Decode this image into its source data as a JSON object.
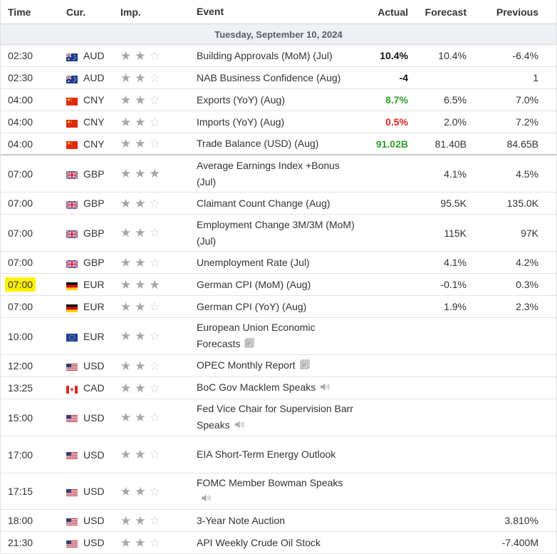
{
  "header": {
    "time": "Time",
    "cur": "Cur.",
    "imp": "Imp.",
    "event": "Event",
    "actual": "Actual",
    "forecast": "Forecast",
    "previous": "Previous"
  },
  "date_label": "Tuesday, September 10, 2024",
  "colors": {
    "positive": "#2e9e2e",
    "negative": "#e0231f",
    "highlight": "#fff200",
    "star_on": "#a6a6a6",
    "star_off": "#cfcfcf"
  },
  "rows": [
    {
      "time": "02:30",
      "cur": "AUD",
      "flag": "aud-flag-icon",
      "stars": 2,
      "event": "Building Approvals (MoM) (Jul)",
      "actual": "10.4%",
      "actual_tone": "neu",
      "forecast": "10.4%",
      "previous": "-6.4%"
    },
    {
      "time": "02:30",
      "cur": "AUD",
      "flag": "aud-flag-icon",
      "stars": 2,
      "event": "NAB Business Confidence (Aug)",
      "actual": "-4",
      "actual_tone": "neu",
      "forecast": "",
      "previous": "1"
    },
    {
      "time": "04:00",
      "cur": "CNY",
      "flag": "cny-flag-icon",
      "stars": 2,
      "event": "Exports (YoY) (Aug)",
      "actual": "8.7%",
      "actual_tone": "pos",
      "forecast": "6.5%",
      "previous": "7.0%"
    },
    {
      "time": "04:00",
      "cur": "CNY",
      "flag": "cny-flag-icon",
      "stars": 2,
      "event": "Imports (YoY) (Aug)",
      "actual": "0.5%",
      "actual_tone": "neg",
      "forecast": "2.0%",
      "previous": "7.2%"
    },
    {
      "time": "04:00",
      "cur": "CNY",
      "flag": "cny-flag-icon",
      "stars": 2,
      "event": "Trade Balance (USD) (Aug)",
      "actual": "91.02B",
      "actual_tone": "pos",
      "forecast": "81.40B",
      "previous": "84.65B",
      "separator": true
    },
    {
      "time": "07:00",
      "cur": "GBP",
      "flag": "gbp-flag-icon",
      "stars": 3,
      "event": "Average Earnings Index +Bonus (Jul)",
      "actual": "",
      "forecast": "4.1%",
      "previous": "4.5%",
      "h": 52
    },
    {
      "time": "07:00",
      "cur": "GBP",
      "flag": "gbp-flag-icon",
      "stars": 2,
      "event": "Claimant Count Change (Aug)",
      "actual": "",
      "forecast": "95.5K",
      "previous": "135.0K"
    },
    {
      "time": "07:00",
      "cur": "GBP",
      "flag": "gbp-flag-icon",
      "stars": 2,
      "event": "Employment Change 3M/3M (MoM) (Jul)",
      "actual": "",
      "forecast": "115K",
      "previous": "97K",
      "h": 52
    },
    {
      "time": "07:00",
      "cur": "GBP",
      "flag": "gbp-flag-icon",
      "stars": 2,
      "event": "Unemployment Rate (Jul)",
      "actual": "",
      "forecast": "4.1%",
      "previous": "4.2%"
    },
    {
      "time": "07:00",
      "cur": "EUR",
      "flag": "de-flag-icon",
      "stars": 3,
      "event": "German CPI (MoM) (Aug)",
      "actual": "",
      "forecast": "-0.1%",
      "previous": "0.3%",
      "highlight": true
    },
    {
      "time": "07:00",
      "cur": "EUR",
      "flag": "de-flag-icon",
      "stars": 2,
      "event": "German CPI (YoY) (Aug)",
      "actual": "",
      "forecast": "1.9%",
      "previous": "2.3%"
    },
    {
      "time": "10:00",
      "cur": "EUR",
      "flag": "eu-flag-icon",
      "stars": 2,
      "event": "European Union Economic Forecasts",
      "icon": "report-icon",
      "actual": "",
      "forecast": "",
      "previous": "",
      "h": 52
    },
    {
      "time": "12:00",
      "cur": "USD",
      "flag": "usd-flag-icon",
      "stars": 2,
      "event": "OPEC Monthly Report",
      "icon": "report-icon",
      "actual": "",
      "forecast": "",
      "previous": ""
    },
    {
      "time": "13:25",
      "cur": "CAD",
      "flag": "cad-flag-icon",
      "stars": 2,
      "event": "BoC Gov Macklem Speaks",
      "icon": "speaker-icon",
      "actual": "",
      "forecast": "",
      "previous": ""
    },
    {
      "time": "15:00",
      "cur": "USD",
      "flag": "usd-flag-icon",
      "stars": 2,
      "event": "Fed Vice Chair for Supervision Barr Speaks",
      "icon": "speaker-icon",
      "actual": "",
      "forecast": "",
      "previous": "",
      "h": 52
    },
    {
      "time": "17:00",
      "cur": "USD",
      "flag": "usd-flag-icon",
      "stars": 2,
      "event": "EIA Short-Term Energy Outlook",
      "actual": "",
      "forecast": "",
      "previous": "",
      "h": 52
    },
    {
      "time": "17:15",
      "cur": "USD",
      "flag": "usd-flag-icon",
      "stars": 2,
      "event": "FOMC Member Bowman Speaks",
      "icon": "speaker-icon",
      "icon_newline": true,
      "actual": "",
      "forecast": "",
      "previous": "",
      "h": 51
    },
    {
      "time": "18:00",
      "cur": "USD",
      "flag": "usd-flag-icon",
      "stars": 2,
      "event": "3-Year Note Auction",
      "actual": "",
      "forecast": "",
      "previous": "3.810%"
    },
    {
      "time": "21:30",
      "cur": "USD",
      "flag": "usd-flag-icon",
      "stars": 2,
      "event": "API Weekly Crude Oil Stock",
      "actual": "",
      "forecast": "",
      "previous": "-7.400M"
    }
  ]
}
